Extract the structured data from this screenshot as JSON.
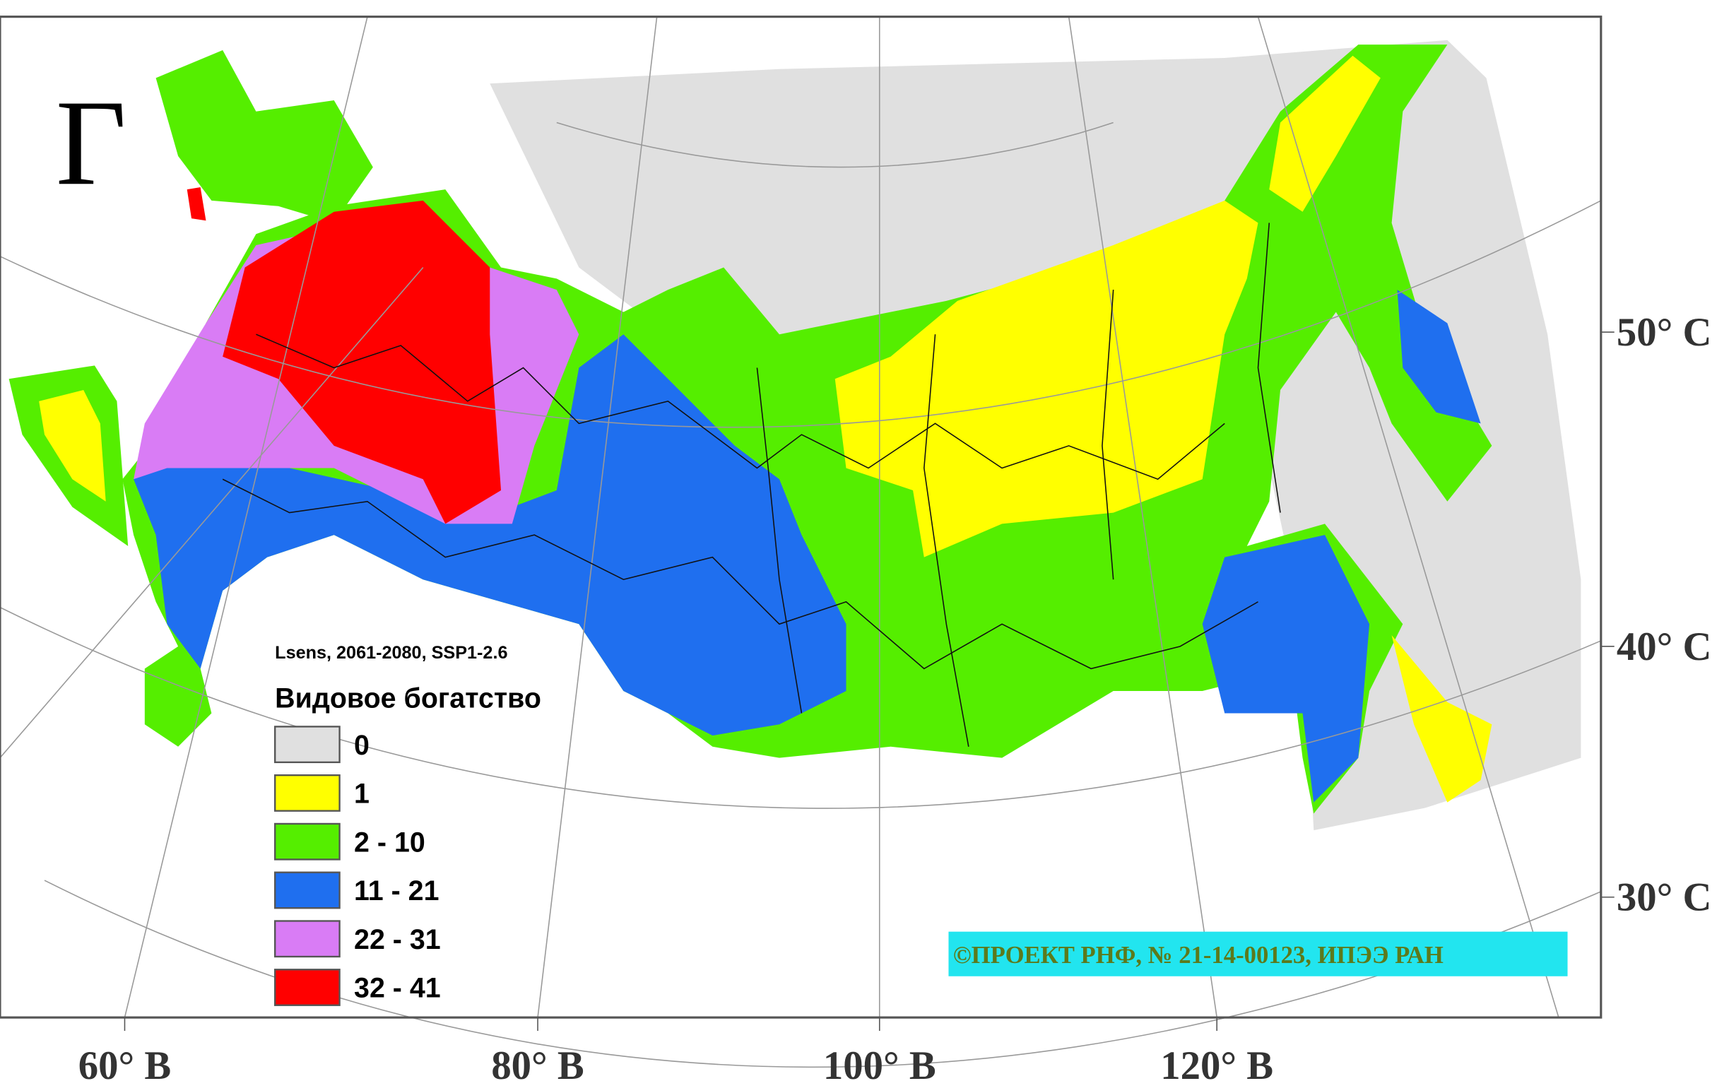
{
  "panel_label": "Г",
  "subtitle": "Lsens, 2061-2080, SSP1-2.6",
  "legend": {
    "title": "Видовое богатство",
    "items": [
      {
        "label": "0",
        "color": "#e0e0e0"
      },
      {
        "label": "1",
        "color": "#ffff00"
      },
      {
        "label": "2 - 10",
        "color": "#55ee00"
      },
      {
        "label": "11 - 21",
        "color": "#1f6fef"
      },
      {
        "label": "22 - 31",
        "color": "#d97cf5"
      },
      {
        "label": "32 - 41",
        "color": "#ff0000"
      }
    ]
  },
  "longitude_labels": [
    "60° В",
    "80° В",
    "100° В",
    "120° В"
  ],
  "latitude_labels": [
    "50° С",
    "40° С",
    "30° С"
  ],
  "credit": "©ПРОЕКТ РНФ, № 21-14-00123, ИПЭЭ РАН"
}
